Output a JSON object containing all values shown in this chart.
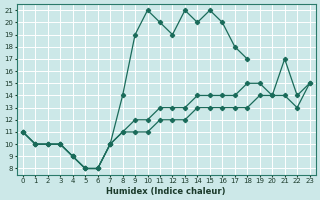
{
  "xlabel": "Humidex (Indice chaleur)",
  "bg_color": "#cce8e8",
  "grid_color": "#b0d4d4",
  "line_color": "#1a6b5a",
  "xlim": [
    -0.5,
    23.5
  ],
  "ylim": [
    7.5,
    21.5
  ],
  "xticks": [
    0,
    1,
    2,
    3,
    4,
    5,
    6,
    7,
    8,
    9,
    10,
    11,
    12,
    13,
    14,
    15,
    16,
    17,
    18,
    19,
    20,
    21,
    22,
    23
  ],
  "yticks": [
    8,
    9,
    10,
    11,
    12,
    13,
    14,
    15,
    16,
    17,
    18,
    19,
    20,
    21
  ],
  "line1_x": [
    0,
    1,
    2,
    3,
    4,
    5,
    6,
    7,
    8,
    9,
    10,
    11,
    12,
    13,
    14,
    15,
    16,
    17,
    18
  ],
  "line1_y": [
    11,
    10,
    10,
    10,
    9,
    8,
    8,
    10,
    14,
    19,
    21,
    20,
    19,
    21,
    20,
    21,
    20,
    18,
    17
  ],
  "line2_x": [
    0,
    1,
    2,
    3,
    4,
    5,
    6,
    7,
    8,
    9,
    10,
    11,
    12,
    13,
    14,
    15,
    16,
    17,
    18,
    19,
    20,
    21,
    22,
    23
  ],
  "line2_y": [
    11,
    10,
    10,
    10,
    9,
    8,
    8,
    10,
    11,
    12,
    12,
    13,
    13,
    13,
    14,
    14,
    14,
    14,
    15,
    15,
    14,
    17,
    14,
    15
  ],
  "line3_x": [
    0,
    1,
    2,
    3,
    4,
    5,
    6,
    7,
    8,
    9,
    10,
    11,
    12,
    13,
    14,
    15,
    16,
    17,
    18,
    19,
    20,
    21,
    22,
    23
  ],
  "line3_y": [
    11,
    10,
    10,
    10,
    9,
    8,
    8,
    10,
    11,
    11,
    11,
    12,
    12,
    12,
    13,
    13,
    13,
    13,
    13,
    14,
    14,
    14,
    13,
    15
  ]
}
